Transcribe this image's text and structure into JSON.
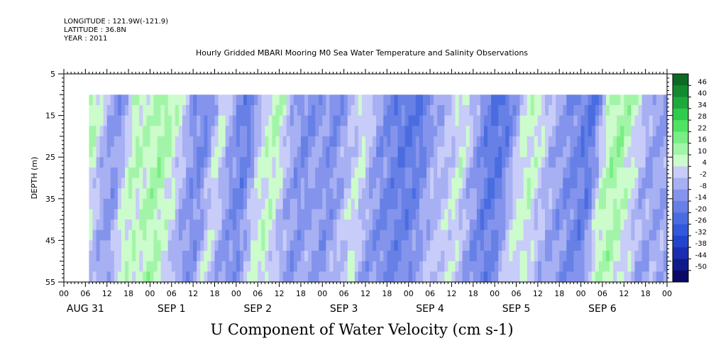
{
  "header": {
    "longitude": "LONGITUDE : 121.9W(-121.9)",
    "latitude": "LATITUDE : 36.8N",
    "year": "YEAR : 2011"
  },
  "title": "Hourly Gridded MBARI Mooring M0 Sea Water Temperature and Salinity Observations",
  "bottom_title": "U Component of Water Velocity (cm s-1)",
  "chart_data": {
    "type": "heatmap",
    "title": "Hourly Gridded MBARI Mooring M0 Sea Water Temperature and Salinity Observations",
    "xlabel": "",
    "ylabel": "DEPTH (m)",
    "variable": "U Component of Water Velocity (cm s-1)",
    "x_axis": {
      "unit": "hour",
      "start": "2011-08-31 00:00",
      "end": "2011-09-07 00:00",
      "tick_labels": [
        "00",
        "06",
        "12",
        "18",
        "00",
        "06",
        "12",
        "18",
        "00",
        "06",
        "12",
        "18",
        "00",
        "06",
        "12",
        "18",
        "00",
        "06",
        "12",
        "18",
        "00",
        "06",
        "12",
        "18",
        "00",
        "06",
        "12",
        "18",
        "00"
      ],
      "date_labels": [
        "AUG 31",
        "SEP  1",
        "SEP  2",
        "SEP  3",
        "SEP  4",
        "SEP  5",
        "SEP  6"
      ]
    },
    "y_axis": {
      "ylim": [
        5,
        55
      ],
      "inverted": true,
      "ticks": [
        5,
        15,
        25,
        35,
        45,
        55
      ]
    },
    "data_extent": {
      "time_start": "2011-08-31 07:00",
      "time_end": "2011-09-07 00:00",
      "depth_top": 10,
      "depth_bottom": 55
    },
    "colorbar": {
      "levels": [
        -50,
        -44,
        -38,
        -32,
        -26,
        -20,
        -14,
        -8,
        -2,
        4,
        10,
        16,
        22,
        28,
        34,
        40,
        46
      ],
      "labels": [
        "46",
        "40",
        "34",
        "28",
        "22",
        "16",
        "10",
        "4",
        "-2",
        "-8",
        "-14",
        "-20",
        "-26",
        "-32",
        "-38",
        "-44",
        "-50"
      ],
      "colors": [
        "#0a0a66",
        "#101a8a",
        "#1a2fb0",
        "#2244cc",
        "#3358dd",
        "#4a6ce0",
        "#6680e6",
        "#8494ec",
        "#a6b0f2",
        "#c8ccf8",
        "#ccfbcc",
        "#a2f5a8",
        "#78ee84",
        "#4fe364",
        "#2fcc4c",
        "#1fa83b",
        "#138a2f",
        "#0c6a24"
      ]
    },
    "fields_by_day": [
      {
        "day": "AUG 31",
        "u_surface_cm_s": [
          5,
          8,
          12,
          -5,
          -12,
          10
        ]
      },
      {
        "day": "SEP 1",
        "u_surface_cm_s": [
          8,
          14,
          6,
          -10,
          -15,
          6
        ]
      },
      {
        "day": "SEP 2",
        "u_surface_cm_s": [
          -12,
          -18,
          4,
          10,
          -6,
          -14
        ]
      },
      {
        "day": "SEP 3",
        "u_surface_cm_s": [
          -8,
          -14,
          -4,
          6,
          -10,
          -16
        ]
      },
      {
        "day": "SEP 4",
        "u_surface_cm_s": [
          -20,
          -18,
          -6,
          -2,
          6,
          -10
        ]
      },
      {
        "day": "SEP 5",
        "u_surface_cm_s": [
          -22,
          -18,
          4,
          8,
          -4,
          -10
        ]
      },
      {
        "day": "SEP 6",
        "u_surface_cm_s": [
          -16,
          -20,
          10,
          14,
          4,
          -8
        ]
      }
    ]
  }
}
